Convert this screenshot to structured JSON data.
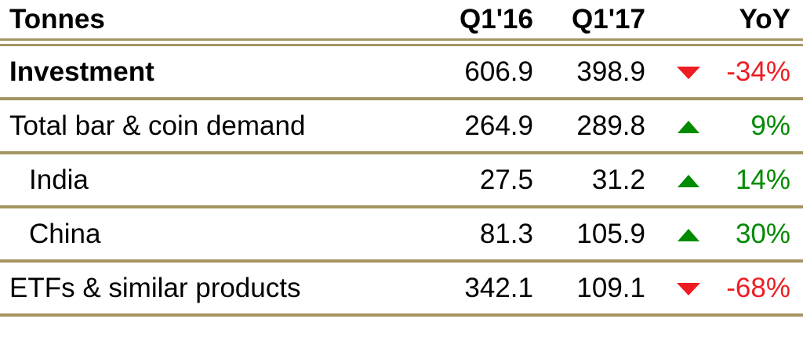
{
  "header": {
    "col_label": "Tonnes",
    "col_q116": "Q1'16",
    "col_q117": "Q1'17",
    "col_yoy": "YoY"
  },
  "colors": {
    "positive": "#008a00",
    "negative": "#ee1c23",
    "rule": "#a49561",
    "text": "#000000",
    "background": "#ffffff"
  },
  "chart_data": {
    "type": "table",
    "title": "Tonnes",
    "columns": [
      "Tonnes",
      "Q1'16",
      "Q1'17",
      "YoY"
    ],
    "rows": [
      {
        "label": "Investment",
        "q1_16": "606.9",
        "q1_17": "398.9",
        "yoy": "-34%",
        "yoy_pct": -34,
        "trend": "down",
        "bold": true,
        "indent": false
      },
      {
        "label": "Total bar & coin demand",
        "q1_16": "264.9",
        "q1_17": "289.8",
        "yoy": "9%",
        "yoy_pct": 9,
        "trend": "up",
        "bold": false,
        "indent": false
      },
      {
        "label": "India",
        "q1_16": "27.5",
        "q1_17": "31.2",
        "yoy": "14%",
        "yoy_pct": 14,
        "trend": "up",
        "bold": false,
        "indent": true
      },
      {
        "label": "China",
        "q1_16": "81.3",
        "q1_17": "105.9",
        "yoy": "30%",
        "yoy_pct": 30,
        "trend": "up",
        "bold": false,
        "indent": true
      },
      {
        "label": "ETFs & similar products",
        "q1_16": "342.1",
        "q1_17": "109.1",
        "yoy": "-68%",
        "yoy_pct": -68,
        "trend": "down",
        "bold": false,
        "indent": false
      }
    ]
  }
}
